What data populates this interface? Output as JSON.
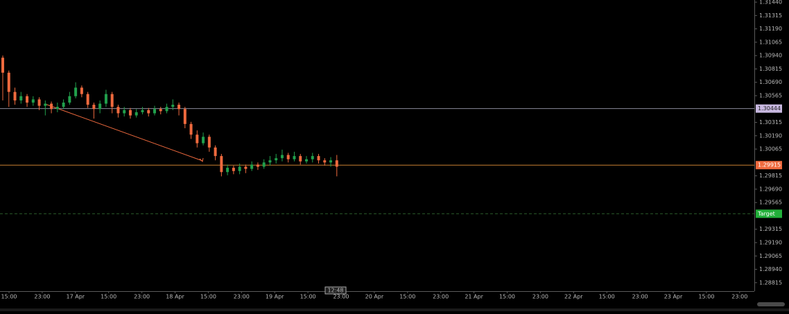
{
  "chart_data": {
    "type": "candlestick",
    "categories": [
      "15:00",
      "23:00",
      "17 Apr",
      "15:00",
      "23:00",
      "18 Apr",
      "15:00",
      "23:00",
      "19 Apr",
      "15:00",
      "23:00",
      "20 Apr",
      "15:00",
      "23:00",
      "21 Apr",
      "15:00",
      "23:00",
      "22 Apr",
      "15:00",
      "23:00",
      "23 Apr",
      "15:00",
      "23:00"
    ],
    "open": [
      1.3092,
      1.3078,
      1.306,
      1.3052,
      1.3056,
      1.305,
      1.3053,
      1.3047,
      1.3049,
      1.3044,
      1.3046,
      1.305,
      1.3056,
      1.3064,
      1.3058,
      1.3048,
      1.3044,
      1.3049,
      1.3058,
      1.3046,
      1.304,
      1.3043,
      1.3038,
      1.3041,
      1.3043,
      1.304,
      1.3044,
      1.3042,
      1.3046,
      1.3048,
      1.3044,
      1.303,
      1.302,
      1.3012,
      1.3018,
      1.3008,
      1.3,
      1.2985,
      1.2989,
      1.2986,
      1.299,
      1.2988,
      1.2992,
      1.299,
      1.2994,
      1.2996,
      1.2998,
      1.3001,
      1.2997,
      1.3,
      1.2995,
      1.2997,
      1.3,
      1.2996,
      1.2994,
      1.2996
    ],
    "high": [
      1.3094,
      1.308,
      1.3064,
      1.306,
      1.3058,
      1.3056,
      1.3055,
      1.3052,
      1.3051,
      1.305,
      1.3053,
      1.306,
      1.3069,
      1.3066,
      1.306,
      1.305,
      1.3052,
      1.3062,
      1.306,
      1.3048,
      1.3046,
      1.3045,
      1.3044,
      1.3046,
      1.3045,
      1.3047,
      1.3046,
      1.3049,
      1.3053,
      1.305,
      1.3046,
      1.3032,
      1.3024,
      1.3022,
      1.302,
      1.301,
      1.3002,
      1.2992,
      1.2991,
      1.2993,
      1.2992,
      1.2995,
      1.2994,
      1.2997,
      1.3,
      1.3002,
      1.3006,
      1.3003,
      1.3004,
      1.3002,
      1.3,
      1.3003,
      1.3002,
      1.2998,
      1.2999,
      1.3001
    ],
    "low": [
      1.3052,
      1.3046,
      1.3048,
      1.3049,
      1.3046,
      1.3047,
      1.3043,
      1.3038,
      1.304,
      1.3041,
      1.3044,
      1.3048,
      1.3054,
      1.3055,
      1.3045,
      1.3035,
      1.304,
      1.3046,
      1.304,
      1.3036,
      1.3037,
      1.3035,
      1.3036,
      1.3039,
      1.3037,
      1.3038,
      1.3039,
      1.304,
      1.3043,
      1.3038,
      1.3026,
      1.3016,
      1.3008,
      1.301,
      1.3004,
      1.2996,
      1.2981,
      1.2982,
      1.2983,
      1.2983,
      1.2984,
      1.2986,
      1.2987,
      1.2988,
      1.2991,
      1.2993,
      1.2995,
      1.2994,
      1.2995,
      1.2992,
      1.2993,
      1.2994,
      1.2993,
      1.2991,
      1.299,
      1.2981
    ],
    "close": [
      1.3078,
      1.306,
      1.3052,
      1.3056,
      1.305,
      1.3053,
      1.3047,
      1.3049,
      1.3044,
      1.3046,
      1.305,
      1.3056,
      1.3064,
      1.3058,
      1.3048,
      1.3044,
      1.3049,
      1.3058,
      1.3046,
      1.304,
      1.3043,
      1.3038,
      1.3041,
      1.3043,
      1.304,
      1.3044,
      1.3042,
      1.3046,
      1.3048,
      1.3044,
      1.303,
      1.302,
      1.3012,
      1.3018,
      1.3008,
      1.3,
      1.2985,
      1.2989,
      1.2986,
      1.299,
      1.2988,
      1.2992,
      1.299,
      1.2994,
      1.2996,
      1.2998,
      1.3001,
      1.2997,
      1.3,
      1.2995,
      1.2997,
      1.3,
      1.2996,
      1.2994,
      1.2996,
      1.299
    ],
    "up_color": "#21a04c",
    "down_color": "#ef6a3e",
    "ylim": [
      1.28736,
      1.3146
    ],
    "yticks": [
      {
        "value": 1.3144,
        "label": "1.31440"
      },
      {
        "value": 1.31315,
        "label": "1.31315"
      },
      {
        "value": 1.3119,
        "label": "1.31190"
      },
      {
        "value": 1.31065,
        "label": "1.31065"
      },
      {
        "value": 1.3094,
        "label": "1.30940"
      },
      {
        "value": 1.30815,
        "label": "1.30815"
      },
      {
        "value": 1.3069,
        "label": "1.30690"
      },
      {
        "value": 1.30565,
        "label": "1.30565"
      },
      {
        "value": 1.30315,
        "label": "1.30315"
      },
      {
        "value": 1.3019,
        "label": "1.30190"
      },
      {
        "value": 1.30065,
        "label": "1.30065"
      },
      {
        "value": 1.29815,
        "label": "1.29815"
      },
      {
        "value": 1.2969,
        "label": "1.29690"
      },
      {
        "value": 1.29565,
        "label": "1.29565"
      },
      {
        "value": 1.29315,
        "label": "1.29315"
      },
      {
        "value": 1.2919,
        "label": "1.29190"
      },
      {
        "value": 1.29065,
        "label": "1.29065"
      },
      {
        "value": 1.2894,
        "label": "1.28940"
      },
      {
        "value": 1.28815,
        "label": "1.28815"
      }
    ],
    "levels": [
      {
        "value": 1.30444,
        "color": "#c8b8e0",
        "line_color": "#8a8a9a"
      },
      {
        "value": 1.29915,
        "color": "#ef6a3e",
        "line_color": "#c88030"
      },
      {
        "value": 1.2946,
        "label": "Target",
        "color": "#22b03a",
        "line_color": "#2a5a2a"
      }
    ],
    "cursor_time": "12:48"
  }
}
